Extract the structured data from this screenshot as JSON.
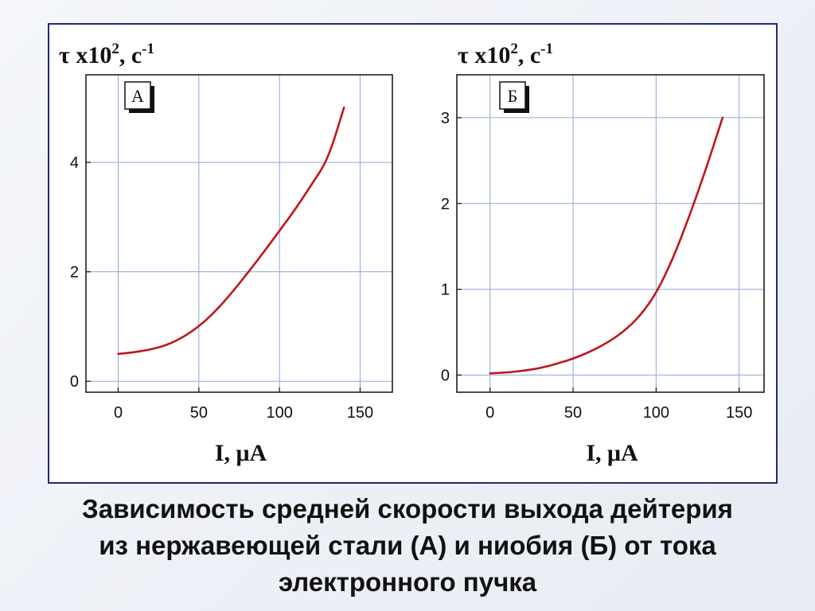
{
  "caption": {
    "line1": "Зависимость средней скорости выхода дейтерия",
    "line2": "из нержавеющей стали (А) и ниобия (Б) от тока",
    "line3": "электронного пучка"
  },
  "colors": {
    "curve": "#c0161b",
    "grid": "#8ea6d8",
    "frame": "#1e2a78"
  },
  "chart_data": [
    {
      "type": "line",
      "panel_label": "А",
      "ylabel": {
        "base": "τ x10",
        "exp1": "2",
        "mid": ", с",
        "exp2": "-1"
      },
      "xlabel": "I, μA",
      "xlim": [
        -20,
        170
      ],
      "ylim": [
        -0.2,
        5.6
      ],
      "xticks": [
        0,
        50,
        100,
        150
      ],
      "yticks": [
        0,
        2,
        4
      ],
      "grid": true,
      "series": [
        {
          "x": [
            0,
            10,
            20,
            30,
            40,
            50,
            60,
            70,
            80,
            90,
            100,
            110,
            120,
            130,
            140
          ],
          "y": [
            0.5,
            0.53,
            0.58,
            0.66,
            0.8,
            1.0,
            1.27,
            1.6,
            1.97,
            2.35,
            2.75,
            3.15,
            3.6,
            4.05,
            5.0
          ]
        }
      ]
    },
    {
      "type": "line",
      "panel_label": "Б",
      "ylabel": {
        "base": "τ x10",
        "exp1": "2",
        "mid": ", с",
        "exp2": "-1"
      },
      "xlabel": "I, μA",
      "xlim": [
        -20,
        165
      ],
      "ylim": [
        -0.2,
        3.5
      ],
      "xticks": [
        0,
        50,
        100,
        150
      ],
      "yticks": [
        0,
        1,
        2,
        3
      ],
      "grid": true,
      "series": [
        {
          "x": [
            0,
            10,
            20,
            30,
            40,
            50,
            60,
            70,
            80,
            90,
            100,
            110,
            120,
            130,
            140
          ],
          "y": [
            0.02,
            0.03,
            0.05,
            0.08,
            0.13,
            0.19,
            0.27,
            0.37,
            0.5,
            0.68,
            0.95,
            1.35,
            1.85,
            2.4,
            3.0
          ]
        }
      ]
    }
  ]
}
